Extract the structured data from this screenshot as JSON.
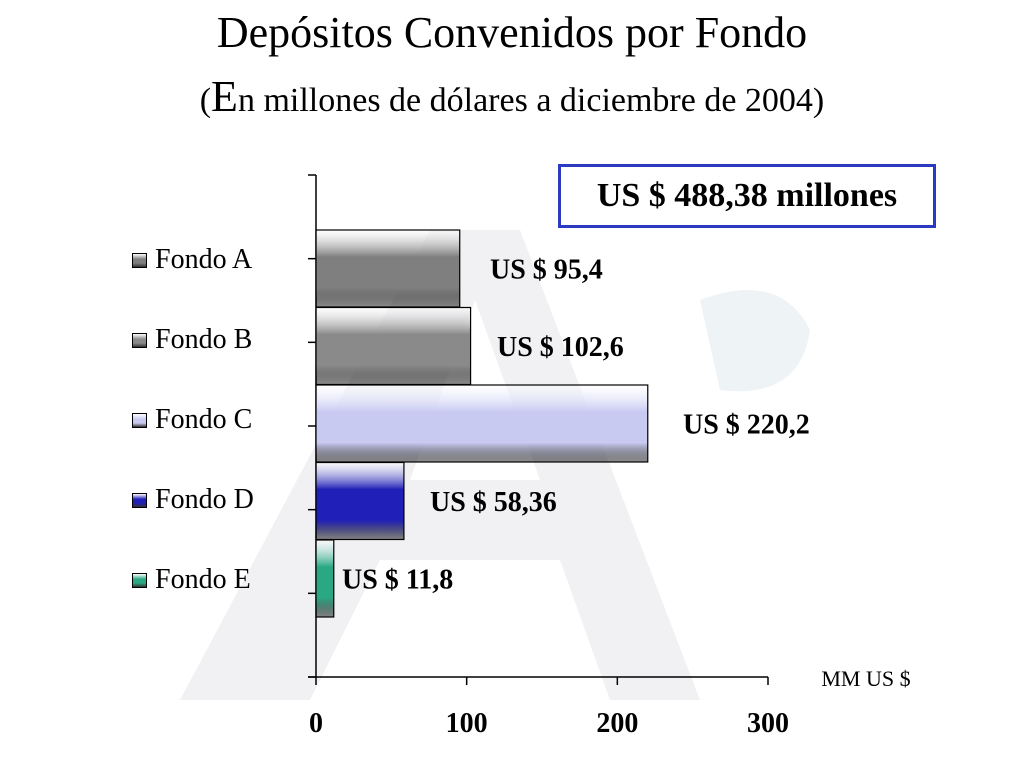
{
  "title": "Depósitos Convenidos por Fondo",
  "subtitle_open": "(",
  "subtitle_big": "E",
  "subtitle_rest": "n millones de dólares a diciembre de 2004)",
  "total_label": "US $ 488,38 millones",
  "unit_label": "MM US $",
  "chart_data": {
    "type": "bar",
    "orientation": "horizontal",
    "categories": [
      "Fondo A",
      "Fondo B",
      "Fondo C",
      "Fondo D",
      "Fondo E"
    ],
    "values": [
      95.4,
      102.6,
      220.2,
      58.36,
      11.8
    ],
    "data_labels": [
      "US $ 95,4",
      "US $ 102,6",
      "US $ 220,2",
      "US $ 58,36",
      "US $ 11,8"
    ],
    "colors": [
      "#7f7f7f",
      "#8a8a8a",
      "#c8caf2",
      "#2020b8",
      "#2aa884"
    ],
    "xlim": [
      0,
      300
    ],
    "xticks": [
      0,
      100,
      200,
      300
    ],
    "xtick_labels": [
      "0",
      "100",
      "200",
      "300"
    ],
    "legend_position": "left",
    "grid": false
  }
}
